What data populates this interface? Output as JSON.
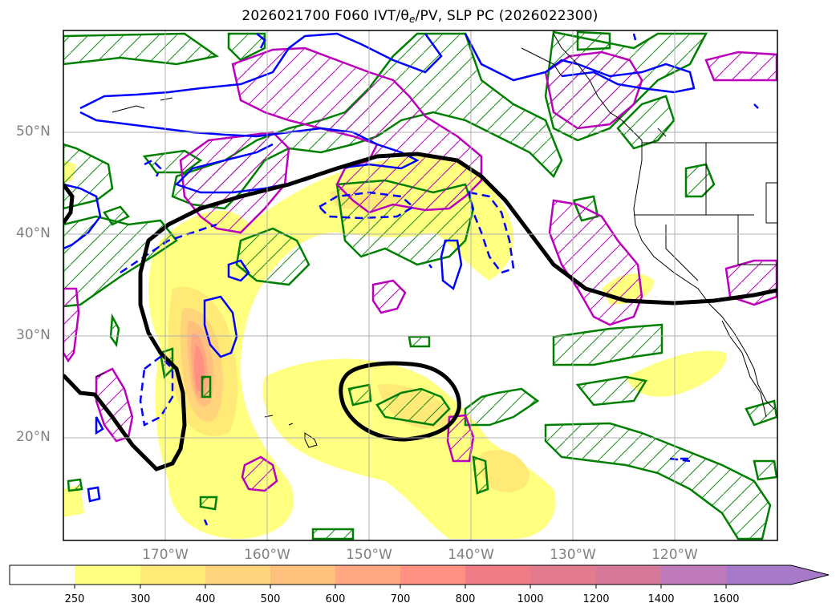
{
  "title": {
    "prefix": "2026021700 F060 IVT/",
    "theta": "θ",
    "theta_sub": "e",
    "suffix": "/PV, SLP PC (2026022300)"
  },
  "axes": {
    "lat_labels": [
      "50°N",
      "40°N",
      "30°N",
      "20°N"
    ],
    "lon_labels": [
      "170°W",
      "160°W",
      "150°W",
      "140°W",
      "130°W",
      "120°W"
    ],
    "gridlines": true
  },
  "colorbar": {
    "ticks": [
      "250",
      "300",
      "400",
      "500",
      "600",
      "700",
      "800",
      "1000",
      "1200",
      "1400",
      "1600"
    ],
    "colors": [
      "#ffffff",
      "#ffff80",
      "#ffea77",
      "#ffd47a",
      "#ffc07e",
      "#ffa882",
      "#ff9082",
      "#f07d85",
      "#d57899",
      "#bd79bb",
      "#a67ac8"
    ],
    "extend": "max"
  },
  "legend_colors": {
    "slp_contour": "#000000",
    "theta_e": "#008000",
    "pv": "#0000ff",
    "positive_anomaly": "#bb00bb"
  }
}
